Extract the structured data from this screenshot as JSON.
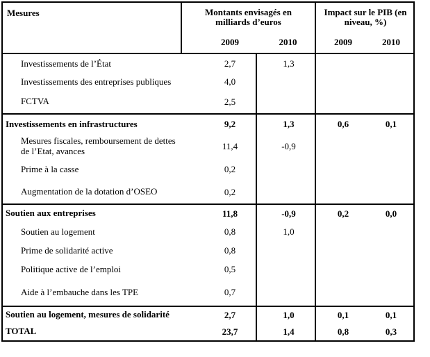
{
  "table": {
    "title_column": "Mesures",
    "amounts_header": {
      "line1": "Montants envisagés en",
      "line2": "milliards d’euros"
    },
    "impact_header": {
      "line1": "Impact sur le PIB (en",
      "line2": "niveau, %)"
    },
    "year_columns": {
      "amounts_2009": "2009",
      "amounts_2010": "2010",
      "impact_2009": "2009",
      "impact_2010": "2010"
    },
    "rows": [
      {
        "label": "Investissements de l’État",
        "bold": false,
        "divider_above": false,
        "m2009": "2,7",
        "m2010": "1,3",
        "i2009": "",
        "i2010": ""
      },
      {
        "label": "Investissements des entreprises publiques",
        "bold": false,
        "divider_above": false,
        "m2009": "4,0",
        "m2010": "",
        "i2009": "",
        "i2010": ""
      },
      {
        "label": "FCTVA",
        "bold": false,
        "divider_above": false,
        "m2009": "2,5",
        "m2010": "",
        "i2009": "",
        "i2010": ""
      },
      {
        "label": "Investissements en infrastructures",
        "bold": true,
        "divider_above": true,
        "m2009": "9,2",
        "m2010": "1,3",
        "i2009": "0,6",
        "i2010": "0,1"
      },
      {
        "label": "Mesures fiscales, remboursement de dettes de l’Etat, avances",
        "bold": false,
        "divider_above": false,
        "m2009": "11,4",
        "m2010": "-0,9",
        "i2009": "",
        "i2010": ""
      },
      {
        "label": "Prime à la casse",
        "bold": false,
        "divider_above": false,
        "m2009": "0,2",
        "m2010": "",
        "i2009": "",
        "i2010": ""
      },
      {
        "label": "Augmentation de la dotation d’OSEO",
        "bold": false,
        "divider_above": false,
        "m2009": "0,2",
        "m2010": "",
        "i2009": "",
        "i2010": ""
      },
      {
        "label": "Soutien aux entreprises",
        "bold": true,
        "divider_above": true,
        "m2009": "11,8",
        "m2010": "-0,9",
        "i2009": "0,2",
        "i2010": "0,0"
      },
      {
        "label": "Soutien au logement",
        "bold": false,
        "divider_above": false,
        "m2009": "0,8",
        "m2010": "1,0",
        "i2009": "",
        "i2010": ""
      },
      {
        "label": "Prime de solidarité active",
        "bold": false,
        "divider_above": false,
        "m2009": "0,8",
        "m2010": "",
        "i2009": "",
        "i2010": ""
      },
      {
        "label": "Politique active de l’emploi",
        "bold": false,
        "divider_above": false,
        "m2009": "0,5",
        "m2010": "",
        "i2009": "",
        "i2010": ""
      },
      {
        "label": "Aide à l’embauche dans les TPE",
        "bold": false,
        "divider_above": false,
        "m2009": "0,7",
        "m2010": "",
        "i2009": "",
        "i2010": ""
      },
      {
        "label": "Soutien au logement, mesures de solidarité",
        "bold": true,
        "divider_above": true,
        "m2009": "2,7",
        "m2010": "1,0",
        "i2009": "0,1",
        "i2010": "0,1"
      },
      {
        "label": "TOTAL",
        "bold": true,
        "divider_above": false,
        "m2009": "23,7",
        "m2010": "1,4",
        "i2009": "0,8",
        "i2010": "0,3"
      }
    ],
    "colors": {
      "border": "#000000",
      "text": "#000000",
      "background": "#ffffff"
    }
  }
}
